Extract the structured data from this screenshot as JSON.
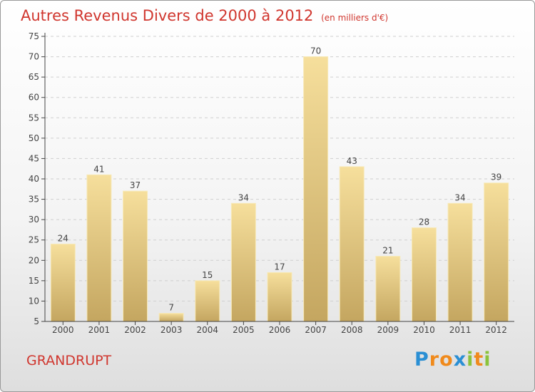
{
  "title": "Autres Revenus Divers de 2000 à 2012",
  "subtitle": "(en milliers d'€)",
  "place": "GRANDRUPT",
  "logo": {
    "text": "Proxiti",
    "letters": [
      {
        "ch": "P",
        "color": "#2a8fd4"
      },
      {
        "ch": "r",
        "color": "#f08a1c"
      },
      {
        "ch": "o",
        "color": "#f08a1c"
      },
      {
        "ch": "x",
        "color": "#2a8fd4"
      },
      {
        "ch": "i",
        "color": "#8bc33b"
      },
      {
        "ch": "t",
        "color": "#f08a1c"
      },
      {
        "ch": "i",
        "color": "#8bc33b"
      }
    ]
  },
  "colors": {
    "title": "#d0362e",
    "bar_light": "#f6df9c",
    "bar_dark": "#c4a660",
    "axis": "#444444",
    "grid": "#cfcfcf"
  },
  "chart_data": {
    "type": "bar",
    "categories": [
      "2000",
      "2001",
      "2002",
      "2003",
      "2004",
      "2005",
      "2006",
      "2007",
      "2008",
      "2009",
      "2010",
      "2011",
      "2012"
    ],
    "values": [
      24,
      41,
      37,
      7,
      15,
      34,
      17,
      70,
      43,
      21,
      28,
      34,
      39
    ],
    "ylim": [
      5,
      75
    ],
    "yticks": [
      5,
      10,
      15,
      20,
      25,
      30,
      35,
      40,
      45,
      50,
      55,
      60,
      65,
      70,
      75
    ],
    "grid": "horizontal dashed",
    "legend": "none"
  }
}
